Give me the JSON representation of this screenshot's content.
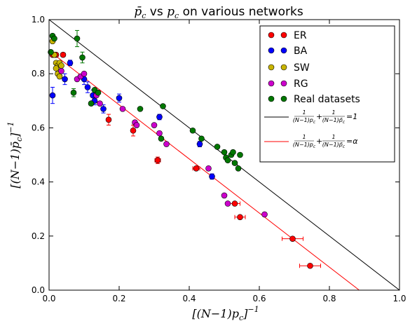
{
  "chart_data": {
    "type": "scatter",
    "title": "p̄c vs pc on various networks",
    "xlabel": "[(N−1)pc]⁻¹",
    "ylabel": "[(N−1)p̄c]⁻¹",
    "xlim": [
      0.0,
      1.0
    ],
    "ylim": [
      0.0,
      1.0
    ],
    "x_ticks": [
      "0.0",
      "0.2",
      "0.4",
      "0.6",
      "0.8",
      "1.0"
    ],
    "y_ticks": [
      "0.0",
      "0.2",
      "0.4",
      "0.6",
      "0.8",
      "1.0"
    ],
    "grid": false,
    "legend_position": "top-right",
    "legend": {
      "er": "ER",
      "ba": "BA",
      "sw": "SW",
      "rg": "RG",
      "real": "Real datasets",
      "line1": "1/((N−1)pc) + 1/((N−1)p̄c) = 1",
      "line2": "1/((N−1)pc) + 1/((N−1)p̄c) = α"
    },
    "lines": [
      {
        "key": "line1",
        "color": "#000000",
        "x": [
          0.0,
          1.0
        ],
        "y": [
          1.0,
          0.0
        ]
      },
      {
        "key": "line2",
        "color": "#ff0000",
        "x": [
          0.0,
          0.885
        ],
        "y": [
          0.885,
          0.0
        ]
      }
    ],
    "series": [
      {
        "key": "er",
        "color": "#ff0000",
        "points": [
          {
            "x": 0.01,
            "y": 0.87,
            "xe": 0.003
          },
          {
            "x": 0.02,
            "y": 0.87,
            "xe": 0.004
          },
          {
            "x": 0.04,
            "y": 0.87,
            "xe": 0.006
          },
          {
            "x": 0.17,
            "y": 0.63,
            "xe": 0.005,
            "ye": 0.02
          },
          {
            "x": 0.24,
            "y": 0.59,
            "xe": 0.005,
            "ye": 0.02
          },
          {
            "x": 0.31,
            "y": 0.48,
            "xe": 0.008,
            "ye": 0.012
          },
          {
            "x": 0.42,
            "y": 0.45,
            "xe": 0.01
          },
          {
            "x": 0.53,
            "y": 0.32,
            "xe": 0.015
          },
          {
            "x": 0.545,
            "y": 0.27,
            "xe": 0.015
          },
          {
            "x": 0.695,
            "y": 0.19,
            "xe": 0.03
          },
          {
            "x": 0.745,
            "y": 0.09,
            "xe": 0.03
          }
        ]
      },
      {
        "key": "ba",
        "color": "#0000ff",
        "points": [
          {
            "x": 0.01,
            "y": 0.72,
            "ye": 0.03
          },
          {
            "x": 0.045,
            "y": 0.78,
            "ye": 0.02
          },
          {
            "x": 0.06,
            "y": 0.84,
            "ye": 0.01
          },
          {
            "x": 0.1,
            "y": 0.78,
            "ye": 0.02
          },
          {
            "x": 0.11,
            "y": 0.75,
            "ye": 0.02
          },
          {
            "x": 0.125,
            "y": 0.72,
            "ye": 0.02
          },
          {
            "x": 0.13,
            "y": 0.7,
            "ye": 0.015
          },
          {
            "x": 0.155,
            "y": 0.67,
            "ye": 0.015
          },
          {
            "x": 0.2,
            "y": 0.71,
            "ye": 0.015
          },
          {
            "x": 0.315,
            "y": 0.64,
            "ye": 0.01
          },
          {
            "x": 0.43,
            "y": 0.54,
            "ye": 0.01
          },
          {
            "x": 0.465,
            "y": 0.42,
            "ye": 0.01
          }
        ]
      },
      {
        "key": "sw",
        "color": "#c8b400",
        "points": [
          {
            "x": 0.01,
            "y": 0.92
          },
          {
            "x": 0.015,
            "y": 0.87
          },
          {
            "x": 0.02,
            "y": 0.84
          },
          {
            "x": 0.025,
            "y": 0.83
          },
          {
            "x": 0.02,
            "y": 0.82
          },
          {
            "x": 0.025,
            "y": 0.8
          },
          {
            "x": 0.03,
            "y": 0.79
          },
          {
            "x": 0.03,
            "y": 0.84
          },
          {
            "x": 0.035,
            "y": 0.83
          }
        ]
      },
      {
        "key": "rg",
        "color": "#cc00cc",
        "points": [
          {
            "x": 0.035,
            "y": 0.81
          },
          {
            "x": 0.08,
            "y": 0.78
          },
          {
            "x": 0.09,
            "y": 0.79
          },
          {
            "x": 0.1,
            "y": 0.8
          },
          {
            "x": 0.135,
            "y": 0.72
          },
          {
            "x": 0.145,
            "y": 0.69
          },
          {
            "x": 0.21,
            "y": 0.67
          },
          {
            "x": 0.245,
            "y": 0.62
          },
          {
            "x": 0.25,
            "y": 0.61
          },
          {
            "x": 0.3,
            "y": 0.61
          },
          {
            "x": 0.315,
            "y": 0.58
          },
          {
            "x": 0.335,
            "y": 0.54
          },
          {
            "x": 0.455,
            "y": 0.45
          },
          {
            "x": 0.5,
            "y": 0.35
          },
          {
            "x": 0.51,
            "y": 0.32
          },
          {
            "x": 0.615,
            "y": 0.28
          }
        ]
      },
      {
        "key": "real",
        "color": "#007700",
        "points": [
          {
            "x": 0.005,
            "y": 0.88
          },
          {
            "x": 0.01,
            "y": 0.94
          },
          {
            "x": 0.015,
            "y": 0.93
          },
          {
            "x": 0.08,
            "y": 0.93,
            "ye": 0.03
          },
          {
            "x": 0.07,
            "y": 0.73,
            "ye": 0.015
          },
          {
            "x": 0.095,
            "y": 0.86,
            "ye": 0.02
          },
          {
            "x": 0.12,
            "y": 0.69
          },
          {
            "x": 0.13,
            "y": 0.74
          },
          {
            "x": 0.14,
            "y": 0.73
          },
          {
            "x": 0.26,
            "y": 0.67
          },
          {
            "x": 0.32,
            "y": 0.56
          },
          {
            "x": 0.325,
            "y": 0.68
          },
          {
            "x": 0.41,
            "y": 0.59
          },
          {
            "x": 0.435,
            "y": 0.56
          },
          {
            "x": 0.48,
            "y": 0.53
          },
          {
            "x": 0.5,
            "y": 0.51
          },
          {
            "x": 0.505,
            "y": 0.49
          },
          {
            "x": 0.51,
            "y": 0.48
          },
          {
            "x": 0.52,
            "y": 0.5
          },
          {
            "x": 0.525,
            "y": 0.51
          },
          {
            "x": 0.53,
            "y": 0.47
          },
          {
            "x": 0.54,
            "y": 0.45
          },
          {
            "x": 0.545,
            "y": 0.5
          }
        ]
      }
    ]
  }
}
